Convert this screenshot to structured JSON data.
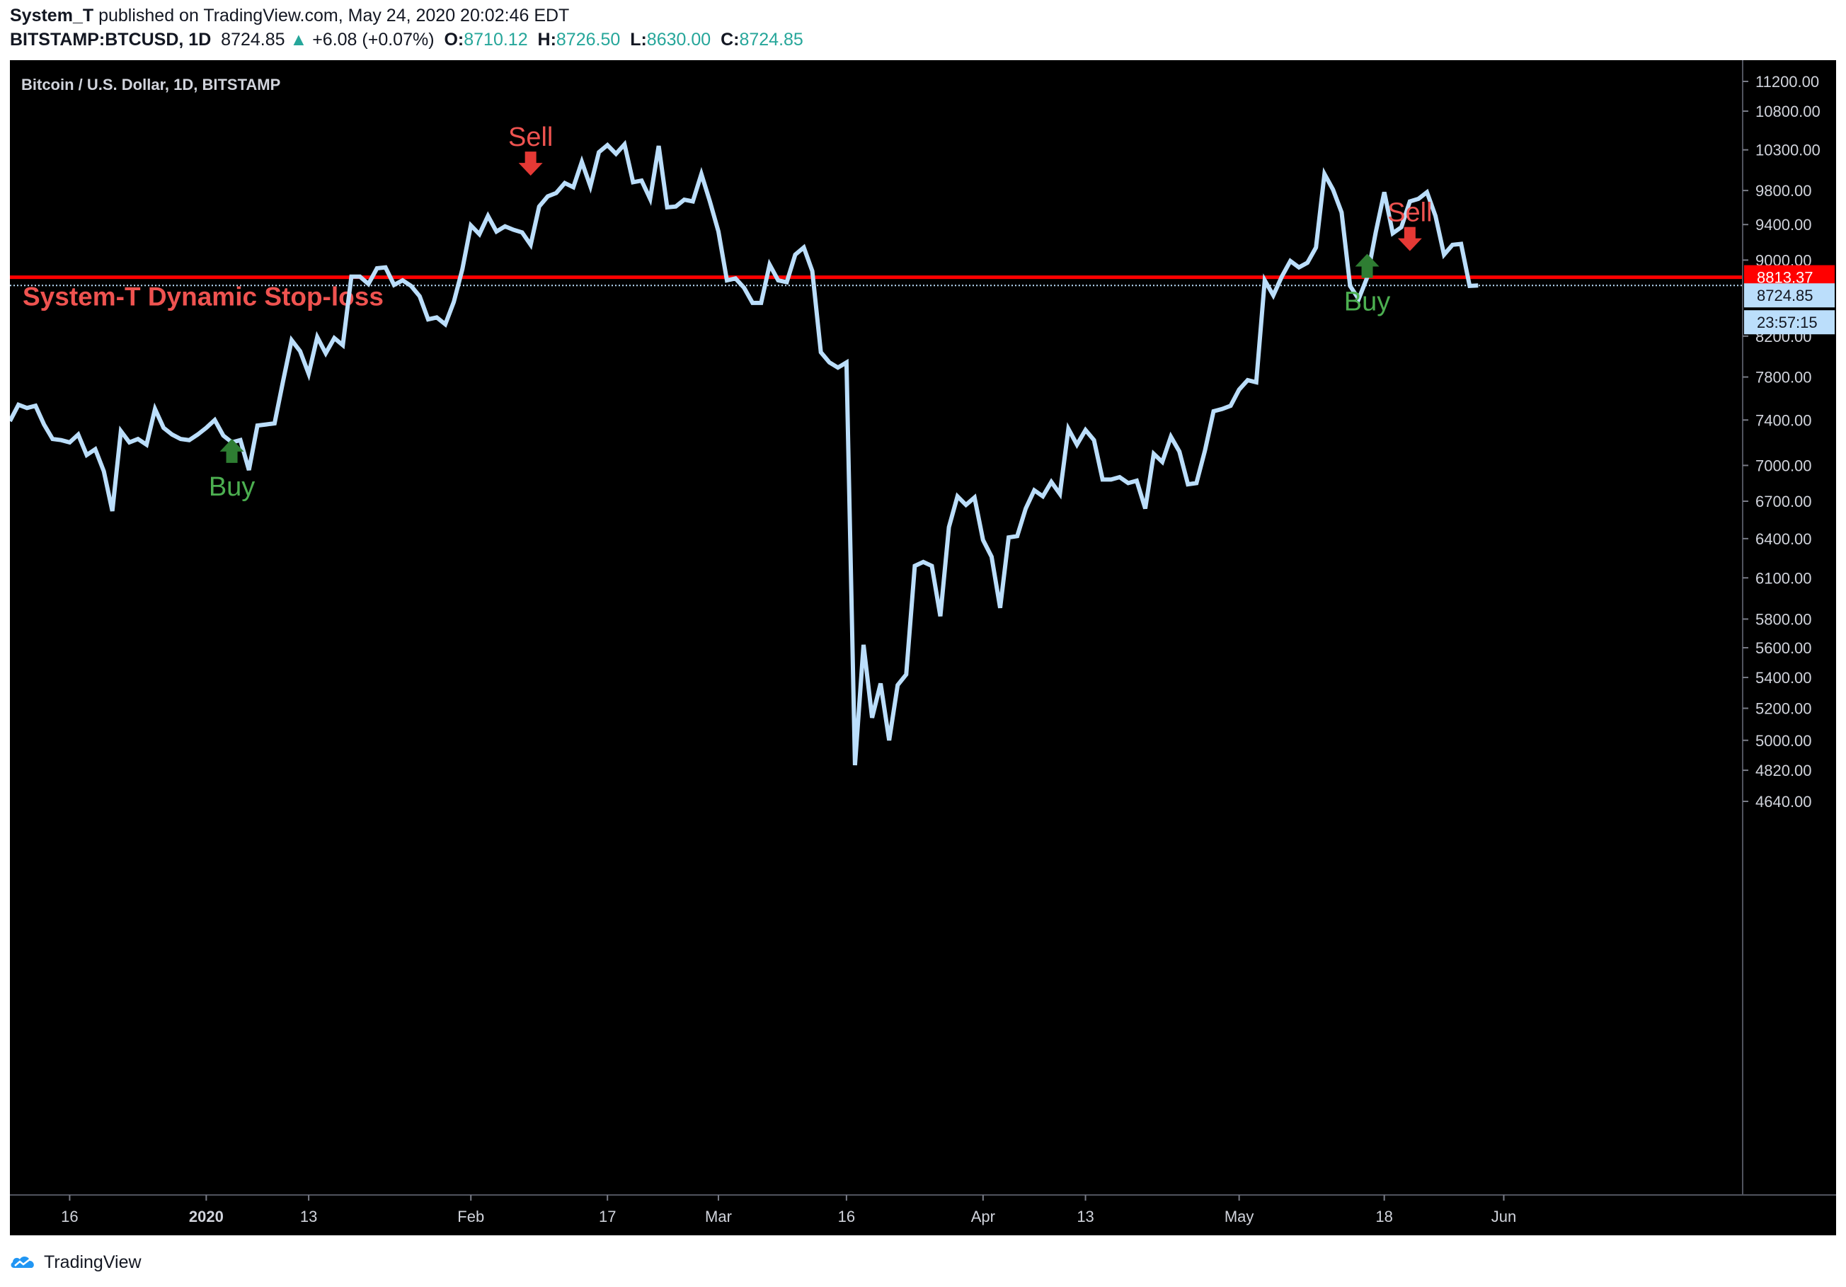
{
  "header": {
    "publisher": "System_T",
    "published_text": "published on TradingView.com, May 24, 2020 20:02:46 EDT",
    "symbol": "BITSTAMP:BTCUSD, 1D",
    "last": "8724.85",
    "arrow": "▲",
    "change": "+6.08 (+0.07%)",
    "o_label": "O:",
    "o_value": "8710.12",
    "h_label": "H:",
    "h_value": "8726.50",
    "l_label": "L:",
    "l_value": "8630.00",
    "c_label": "C:",
    "c_value": "8724.85"
  },
  "footer": {
    "brand": "TradingView",
    "logo_icon": "tradingview-logo-icon"
  },
  "chart_data": {
    "type": "line",
    "title": "Bitcoin / U.S. Dollar, 1D, BITSTAMP",
    "scale": "log",
    "ylim": [
      4500,
      11500
    ],
    "series_color": "#bbdefb",
    "series": [
      {
        "start_date": "2019-12-09",
        "values": [
          7390,
          7540,
          7510,
          7530,
          7360,
          7230,
          7220,
          7200,
          7270,
          7090,
          7140,
          6950,
          6620,
          7300,
          7200,
          7230,
          7180,
          7500,
          7330,
          7270,
          7230,
          7220,
          7270,
          7330,
          7400,
          7260,
          7200,
          7220,
          6960,
          7350,
          7360,
          7370,
          7760,
          8160,
          8050,
          7830,
          8190,
          8030,
          8180,
          8110,
          8820,
          8820,
          8740,
          8910,
          8920,
          8730,
          8780,
          8720,
          8610,
          8370,
          8390,
          8320,
          8550,
          8900,
          9390,
          9290,
          9500,
          9320,
          9380,
          9340,
          9310,
          9170,
          9610,
          9730,
          9770,
          9890,
          9840,
          10150,
          9850,
          10270,
          10360,
          10250,
          10370,
          9900,
          9920,
          9700,
          10350,
          9600,
          9610,
          9690,
          9670,
          10000,
          9670,
          9320,
          8780,
          8800,
          8700,
          8540,
          8540,
          8950,
          8780,
          8760,
          9060,
          9140,
          8880,
          8040,
          7940,
          7890,
          7940,
          4850,
          5620,
          5140,
          5360,
          5000,
          5350,
          5420,
          6190,
          6220,
          6190,
          5820,
          6490,
          6740,
          6670,
          6730,
          6390,
          6260,
          5880,
          6410,
          6420,
          6640,
          6790,
          6740,
          6860,
          6760,
          7320,
          7180,
          7310,
          7220,
          6880,
          6880,
          6900,
          6850,
          6870,
          6640,
          7100,
          7030,
          7250,
          7120,
          6840,
          6850,
          7130,
          7480,
          7500,
          7530,
          7680,
          7770,
          7750,
          8780,
          8620,
          8820,
          8990,
          8920,
          8970,
          9140,
          10000,
          9810,
          9540,
          8720,
          8580,
          8810,
          9310,
          9780,
          9300,
          9370,
          9670,
          9700,
          9780,
          9500,
          9060,
          9170,
          9180,
          8720,
          8724.85
        ]
      }
    ],
    "y_ticks": [
      "11200.00",
      "10800.00",
      "10300.00",
      "9800.00",
      "9400.00",
      "9000.00",
      "8200.00",
      "7800.00",
      "7400.00",
      "7000.00",
      "6700.00",
      "6400.00",
      "6100.00",
      "5800.00",
      "5600.00",
      "5400.00",
      "5200.00",
      "5000.00",
      "4820.00",
      "4640.00"
    ],
    "x_ticks": [
      {
        "label": "16",
        "date": "2019-12-16",
        "bold": false
      },
      {
        "label": "2020",
        "date": "2020-01-01",
        "bold": true
      },
      {
        "label": "13",
        "date": "2020-01-13",
        "bold": false
      },
      {
        "label": "Feb",
        "date": "2020-02-01",
        "bold": false
      },
      {
        "label": "17",
        "date": "2020-02-17",
        "bold": false
      },
      {
        "label": "Mar",
        "date": "2020-03-01",
        "bold": false
      },
      {
        "label": "16",
        "date": "2020-03-16",
        "bold": false
      },
      {
        "label": "Apr",
        "date": "2020-04-01",
        "bold": false
      },
      {
        "label": "13",
        "date": "2020-04-13",
        "bold": false
      },
      {
        "label": "May",
        "date": "2020-05-01",
        "bold": false
      },
      {
        "label": "18",
        "date": "2020-05-18",
        "bold": false
      },
      {
        "label": "Jun",
        "date": "2020-06-01",
        "bold": false
      }
    ],
    "stop_loss": {
      "value": 8813.37,
      "label": "System-T Dynamic Stop-loss",
      "price_label": "8813.37",
      "color": "#ff0000"
    },
    "last_price": {
      "value": 8724.85,
      "label": "8724.85",
      "countdown": "23:57:15"
    },
    "signals": [
      {
        "type": "buy",
        "text": "Buy",
        "date": "2020-01-04",
        "value": 7320
      },
      {
        "type": "sell",
        "text": "Sell",
        "date": "2020-02-08",
        "value": 9860
      },
      {
        "type": "buy",
        "text": "Buy",
        "date": "2020-05-16",
        "value": 9180
      },
      {
        "type": "sell",
        "text": "Sell",
        "date": "2020-05-21",
        "value": 8990
      }
    ],
    "buy_color": "#4caf50",
    "sell_color": "#ef5350"
  }
}
